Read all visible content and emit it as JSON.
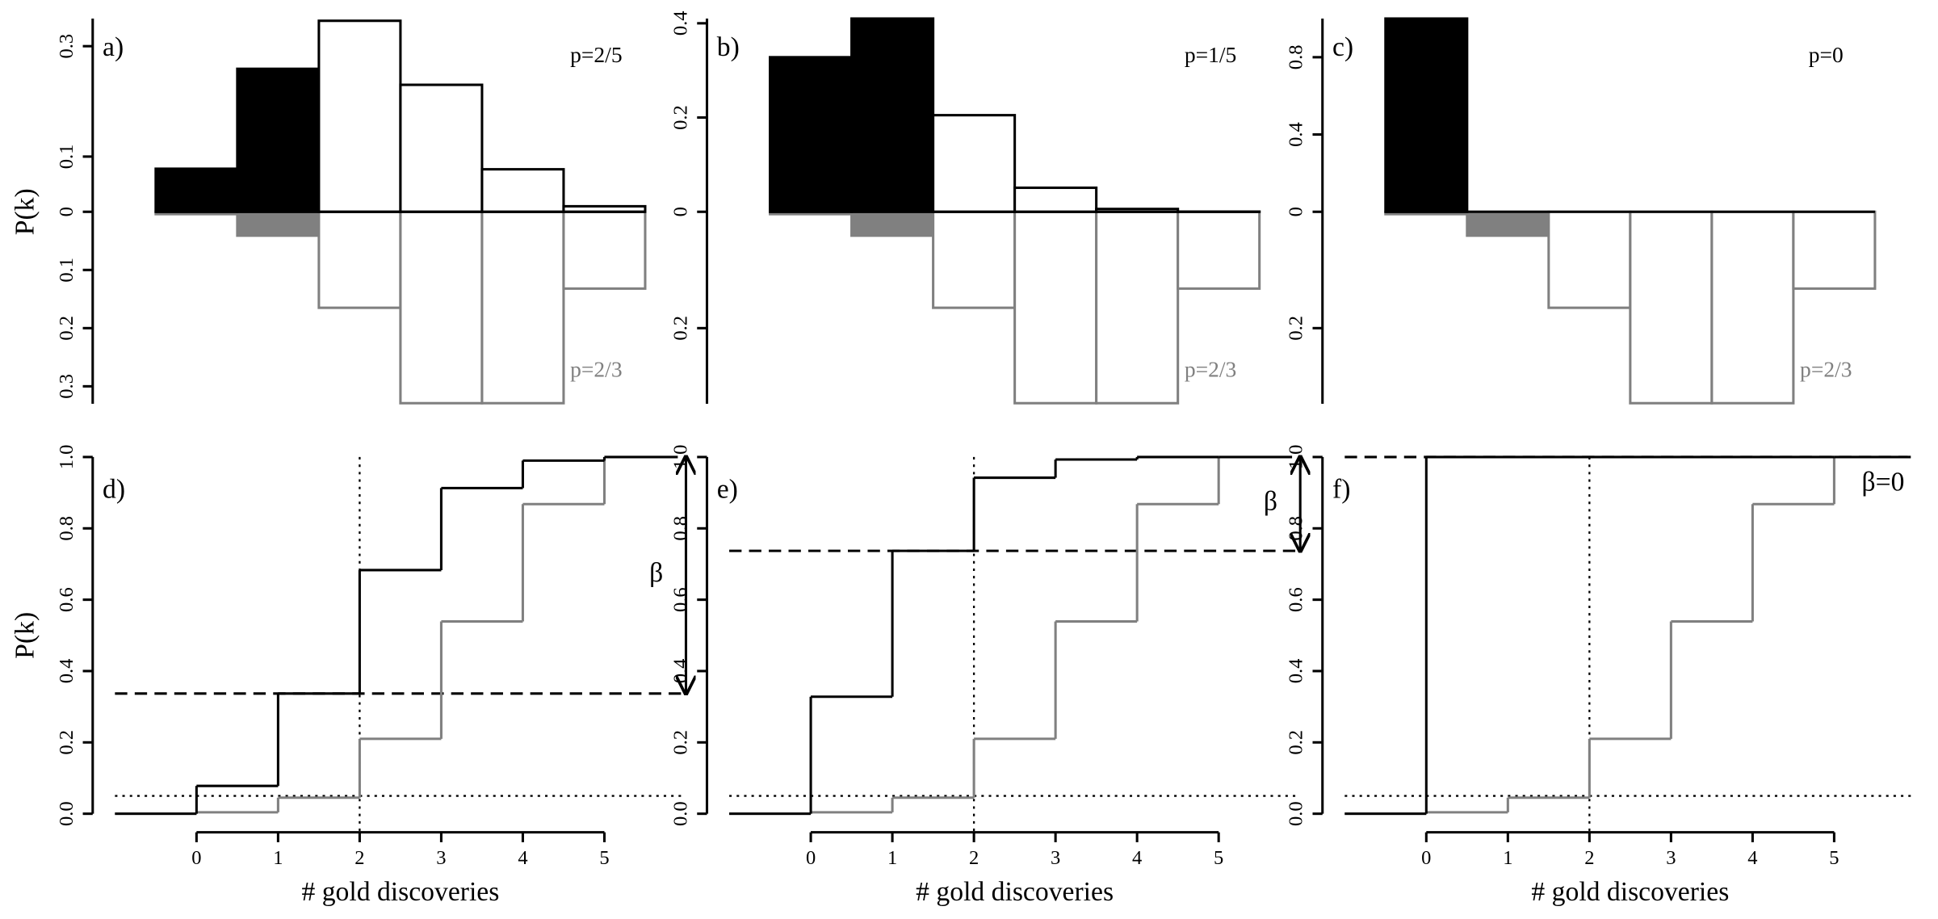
{
  "chart_data": [
    {
      "type": "mirror_bar",
      "panel_label": "a)",
      "y_label": "P(k)",
      "x": [
        0,
        1,
        2,
        3,
        4,
        5
      ],
      "xlim": [
        -1,
        6
      ],
      "ylim": [
        0,
        0.35
      ],
      "yticks": [
        0,
        0.1,
        0.3
      ],
      "y2lim": [
        0,
        0.33
      ],
      "y2ticks": [
        0.1,
        0.2,
        0.3
      ],
      "series": [
        {
          "name": "p=2/5",
          "color": "#000000",
          "fills": [
            "#000000",
            "#000000",
            "#ffffff",
            "#ffffff",
            "#ffffff",
            "#ffffff"
          ],
          "values": [
            0.078,
            0.259,
            0.346,
            0.23,
            0.077,
            0.01
          ]
        },
        {
          "name": "p=2/3",
          "color": "#808080",
          "axis": "y2",
          "fills": [
            "#808080",
            "#808080",
            "#ffffff",
            "#ffffff",
            "#ffffff",
            "#ffffff"
          ],
          "values": [
            0.004,
            0.041,
            0.165,
            0.329,
            0.329,
            0.132
          ]
        }
      ]
    },
    {
      "type": "mirror_bar",
      "panel_label": "b)",
      "x": [
        0,
        1,
        2,
        3,
        4,
        5
      ],
      "xlim": [
        -1,
        6
      ],
      "ylim": [
        0,
        0.41
      ],
      "yticks": [
        0,
        0.2,
        0.4
      ],
      "y2lim": [
        0,
        0.33
      ],
      "y2ticks": [
        0.2
      ],
      "series": [
        {
          "name": "p=1/5",
          "color": "#000000",
          "fills": [
            "#000000",
            "#000000",
            "#ffffff",
            "#ffffff",
            "#ffffff",
            "#ffffff"
          ],
          "values": [
            0.328,
            0.41,
            0.205,
            0.051,
            0.006,
            0.0003
          ]
        },
        {
          "name": "p=2/3",
          "color": "#808080",
          "axis": "y2",
          "fills": [
            "#808080",
            "#808080",
            "#ffffff",
            "#ffffff",
            "#ffffff",
            "#ffffff"
          ],
          "values": [
            0.004,
            0.041,
            0.165,
            0.329,
            0.329,
            0.132
          ]
        }
      ]
    },
    {
      "type": "mirror_bar",
      "panel_label": "c)",
      "x": [
        0,
        1,
        2,
        3,
        4,
        5
      ],
      "xlim": [
        -1,
        6
      ],
      "ylim": [
        0,
        1
      ],
      "yticks": [
        0,
        0.4,
        0.8
      ],
      "y2lim": [
        0,
        0.33
      ],
      "y2ticks": [
        0.2
      ],
      "series": [
        {
          "name": "p=0",
          "color": "#000000",
          "fills": [
            "#000000",
            "#000000",
            "#ffffff",
            "#ffffff",
            "#ffffff",
            "#ffffff"
          ],
          "values": [
            1,
            0,
            0,
            0,
            0,
            0
          ]
        },
        {
          "name": "p=2/3",
          "color": "#808080",
          "axis": "y2",
          "fills": [
            "#808080",
            "#808080",
            "#ffffff",
            "#ffffff",
            "#ffffff",
            "#ffffff"
          ],
          "values": [
            0.004,
            0.041,
            0.165,
            0.329,
            0.329,
            0.132
          ]
        }
      ]
    },
    {
      "type": "step",
      "panel_label": "d)",
      "y_label": "P(k)",
      "x_label": "# gold discoveries",
      "annotation": "β",
      "x": [
        0,
        1,
        2,
        3,
        4,
        5
      ],
      "xlim": [
        -1,
        6
      ],
      "xticks": [
        0,
        1,
        2,
        3,
        4,
        5
      ],
      "ylim": [
        0,
        1
      ],
      "yticks": [
        {
          "value": 0,
          "label": "0.0"
        },
        0.2,
        0.4,
        0.6,
        0.8,
        {
          "value": 1,
          "label": "1.0"
        }
      ],
      "threshold": 0.337,
      "alpha": 0.05,
      "critical_k": 2,
      "series": [
        {
          "color": "#000000",
          "values": [
            0.078,
            0.337,
            0.683,
            0.913,
            0.99,
            1
          ]
        },
        {
          "color": "#808080",
          "values": [
            0.004,
            0.045,
            0.21,
            0.539,
            0.868,
            1
          ]
        }
      ]
    },
    {
      "type": "step",
      "panel_label": "e)",
      "x_label": "# gold discoveries",
      "annotation": "β",
      "x": [
        0,
        1,
        2,
        3,
        4,
        5
      ],
      "xlim": [
        -1,
        6
      ],
      "xticks": [
        0,
        1,
        2,
        3,
        4,
        5
      ],
      "ylim": [
        0,
        1
      ],
      "yticks": [
        {
          "value": 0,
          "label": "0.0"
        },
        0.2,
        0.4,
        0.6,
        0.8,
        {
          "value": 1,
          "label": "1.0"
        }
      ],
      "threshold": 0.737,
      "alpha": 0.05,
      "critical_k": 2,
      "series": [
        {
          "color": "#000000",
          "values": [
            0.328,
            0.737,
            0.942,
            0.993,
            1.0,
            1
          ]
        },
        {
          "color": "#808080",
          "values": [
            0.004,
            0.045,
            0.21,
            0.539,
            0.868,
            1
          ]
        }
      ]
    },
    {
      "type": "step",
      "panel_label": "f)",
      "x_label": "# gold discoveries",
      "annotation": "β=0",
      "x": [
        0,
        1,
        2,
        3,
        4,
        5
      ],
      "xlim": [
        -1,
        6
      ],
      "xticks": [
        0,
        1,
        2,
        3,
        4,
        5
      ],
      "ylim": [
        0,
        1
      ],
      "yticks": [
        {
          "value": 0,
          "label": "0.0"
        },
        0.2,
        0.4,
        0.6,
        0.8,
        {
          "value": 1,
          "label": "1.0"
        }
      ],
      "threshold": 1,
      "alpha": 0.05,
      "critical_k": 2,
      "series": [
        {
          "color": "#000000",
          "values": [
            1,
            1,
            1,
            1,
            1,
            1
          ]
        },
        {
          "color": "#808080",
          "values": [
            0.004,
            0.045,
            0.21,
            0.539,
            0.868,
            1
          ]
        }
      ]
    }
  ]
}
